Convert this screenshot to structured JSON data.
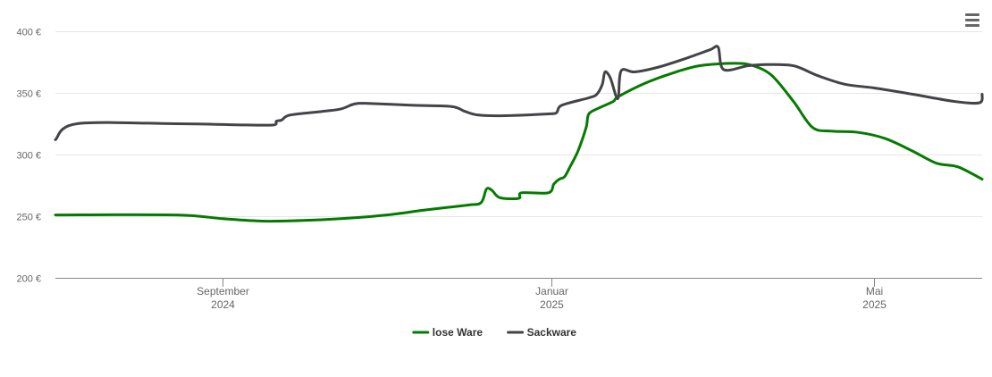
{
  "chart_data": {
    "type": "line",
    "title": "",
    "xlabel": "",
    "ylabel": "",
    "y_unit": "€",
    "ylim": [
      200,
      400
    ],
    "y_ticks": [
      200,
      250,
      300,
      350,
      400
    ],
    "y_tick_labels": [
      "200 €",
      "250 €",
      "300 €",
      "350 €",
      "400 €"
    ],
    "xlim": [
      "2024-07-01",
      "2025-06-10"
    ],
    "x_ticks": [
      {
        "date": "2024-09-01",
        "line1": "September",
        "line2": "2024"
      },
      {
        "date": "2025-01-01",
        "line1": "Januar",
        "line2": "2025"
      },
      {
        "date": "2025-05-01",
        "line1": "Mai",
        "line2": "2025"
      }
    ],
    "grid": true,
    "legend_position": "bottom-center",
    "series": [
      {
        "name": "lose Ware",
        "color": "#047b00",
        "points": [
          [
            "2024-07-01",
            251
          ],
          [
            "2024-08-15",
            251
          ],
          [
            "2024-09-01",
            248
          ],
          [
            "2024-09-16",
            246
          ],
          [
            "2024-10-01",
            246.5
          ],
          [
            "2024-10-15",
            248
          ],
          [
            "2024-11-01",
            251
          ],
          [
            "2024-11-15",
            255
          ],
          [
            "2024-12-01",
            259
          ],
          [
            "2024-12-06",
            261
          ],
          [
            "2024-12-08",
            272
          ],
          [
            "2024-12-10",
            271
          ],
          [
            "2024-12-13",
            265
          ],
          [
            "2024-12-20",
            264.5
          ],
          [
            "2024-12-21",
            269
          ],
          [
            "2024-12-31",
            269
          ],
          [
            "2025-01-02",
            276
          ],
          [
            "2025-01-04",
            280
          ],
          [
            "2025-01-06",
            282
          ],
          [
            "2025-01-08",
            290
          ],
          [
            "2025-01-11",
            303
          ],
          [
            "2025-01-14",
            322
          ],
          [
            "2025-01-15",
            333
          ],
          [
            "2025-01-19",
            338
          ],
          [
            "2025-01-24",
            343
          ],
          [
            "2025-01-26",
            347
          ],
          [
            "2025-02-05",
            358
          ],
          [
            "2025-02-15",
            366
          ],
          [
            "2025-02-25",
            372
          ],
          [
            "2025-03-10",
            374
          ],
          [
            "2025-03-17",
            372
          ],
          [
            "2025-03-24",
            364
          ],
          [
            "2025-04-01",
            343
          ],
          [
            "2025-04-08",
            322
          ],
          [
            "2025-04-15",
            319
          ],
          [
            "2025-04-25",
            318
          ],
          [
            "2025-05-05",
            313
          ],
          [
            "2025-05-15",
            303
          ],
          [
            "2025-05-24",
            293
          ],
          [
            "2025-06-01",
            290
          ],
          [
            "2025-06-10",
            280
          ]
        ]
      },
      {
        "name": "Sackware",
        "color": "#434348",
        "points": [
          [
            "2024-07-01",
            312
          ],
          [
            "2024-07-09",
            325
          ],
          [
            "2024-08-15",
            325
          ],
          [
            "2024-09-10",
            324
          ],
          [
            "2024-09-20",
            324
          ],
          [
            "2024-09-21",
            327
          ],
          [
            "2024-09-23",
            328
          ],
          [
            "2024-09-26",
            332
          ],
          [
            "2024-10-08",
            335
          ],
          [
            "2024-10-15",
            337
          ],
          [
            "2024-10-20",
            341
          ],
          [
            "2024-10-25",
            341.5
          ],
          [
            "2024-11-10",
            340
          ],
          [
            "2024-11-25",
            339
          ],
          [
            "2024-11-30",
            335
          ],
          [
            "2024-12-05",
            332
          ],
          [
            "2024-12-15",
            331.5
          ],
          [
            "2024-12-31",
            333
          ],
          [
            "2025-01-03",
            334
          ],
          [
            "2025-01-05",
            340
          ],
          [
            "2025-01-15",
            346
          ],
          [
            "2025-01-18",
            349
          ],
          [
            "2025-01-20",
            357
          ],
          [
            "2025-01-21",
            367
          ],
          [
            "2025-01-23",
            362
          ],
          [
            "2025-01-25",
            348
          ],
          [
            "2025-01-26",
            347
          ],
          [
            "2025-01-27",
            368
          ],
          [
            "2025-02-01",
            367
          ],
          [
            "2025-02-10",
            371
          ],
          [
            "2025-02-20",
            378
          ],
          [
            "2025-03-01",
            385
          ],
          [
            "2025-03-04",
            387
          ],
          [
            "2025-03-06",
            369
          ],
          [
            "2025-03-15",
            372
          ],
          [
            "2025-03-22",
            373
          ],
          [
            "2025-04-01",
            372
          ],
          [
            "2025-04-10",
            364
          ],
          [
            "2025-04-20",
            357
          ],
          [
            "2025-05-01",
            354
          ],
          [
            "2025-05-15",
            349
          ],
          [
            "2025-05-31",
            343
          ],
          [
            "2025-06-09",
            342
          ],
          [
            "2025-06-10",
            349
          ]
        ]
      }
    ]
  },
  "ui": {
    "menu_icon": "hamburger-menu-icon",
    "axis_color": "#cccccc",
    "grid_color": "#e6e6e6"
  }
}
